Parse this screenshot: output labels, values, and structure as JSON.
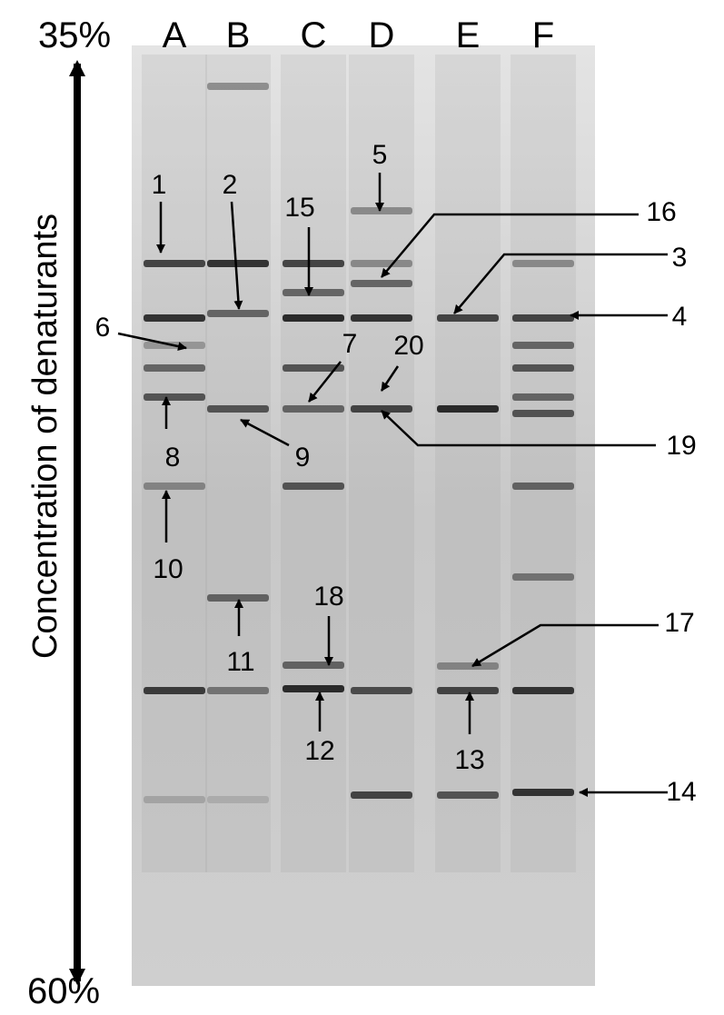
{
  "axis": {
    "top": "35%",
    "bottom": "60%",
    "label": "Concentration of denaturants"
  },
  "lanes": [
    "A",
    "B",
    "C",
    "D",
    "E",
    "F"
  ],
  "bands": [
    "1",
    "2",
    "3",
    "4",
    "5",
    "6",
    "7",
    "8",
    "9",
    "10",
    "11",
    "12",
    "13",
    "14",
    "15",
    "16",
    "17",
    "18",
    "19",
    "20"
  ]
}
